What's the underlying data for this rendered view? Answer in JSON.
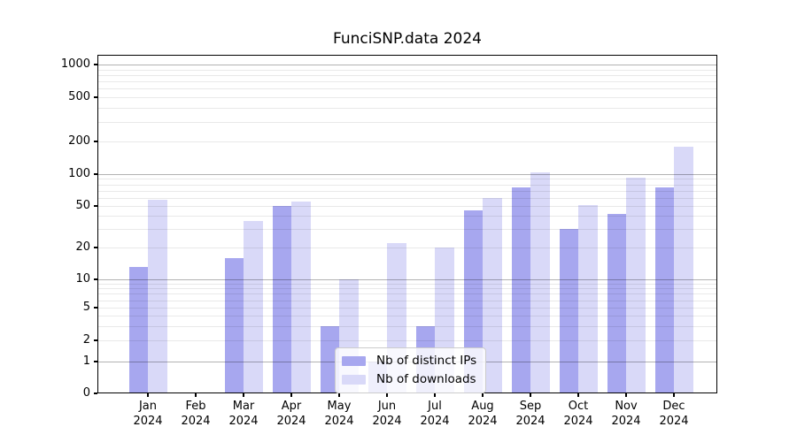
{
  "chart_data": {
    "type": "bar",
    "title": "FunciSNP.data 2024",
    "year": "2024",
    "categories": [
      "Jan 2024",
      "Feb 2024",
      "Mar 2024",
      "Apr 2024",
      "May 2024",
      "Jun 2024",
      "Jul 2024",
      "Aug 2024",
      "Sep 2024",
      "Oct 2024",
      "Nov 2024",
      "Dec 2024"
    ],
    "months": [
      "Jan",
      "Feb",
      "Mar",
      "Apr",
      "May",
      "Jun",
      "Jul",
      "Aug",
      "Sep",
      "Oct",
      "Nov",
      "Dec"
    ],
    "series": [
      {
        "name": "Nb of distinct IPs",
        "color": "#a7a7ef",
        "values": [
          13,
          0,
          16,
          50,
          3,
          1,
          3,
          45,
          75,
          30,
          42,
          75
        ]
      },
      {
        "name": "Nb of downloads",
        "color": "#d9d9f8",
        "values": [
          57,
          0,
          36,
          55,
          10,
          22,
          20,
          60,
          104,
          51,
          93,
          180
        ]
      }
    ],
    "y_axis": {
      "scale": "log-like (symlog with 0 baseline)",
      "ticks": [
        0,
        1,
        2,
        5,
        10,
        20,
        50,
        100,
        200,
        500,
        1000
      ],
      "ylim": [
        0,
        1400
      ]
    },
    "grid": {
      "major_color": "#b2b2b2",
      "minor_color": "#e9e9e9",
      "major_at": [
        1,
        10,
        100,
        1000
      ]
    },
    "legend": {
      "position": "inside lower-center",
      "entries": [
        "Nb of distinct IPs",
        "Nb of downloads"
      ]
    }
  }
}
